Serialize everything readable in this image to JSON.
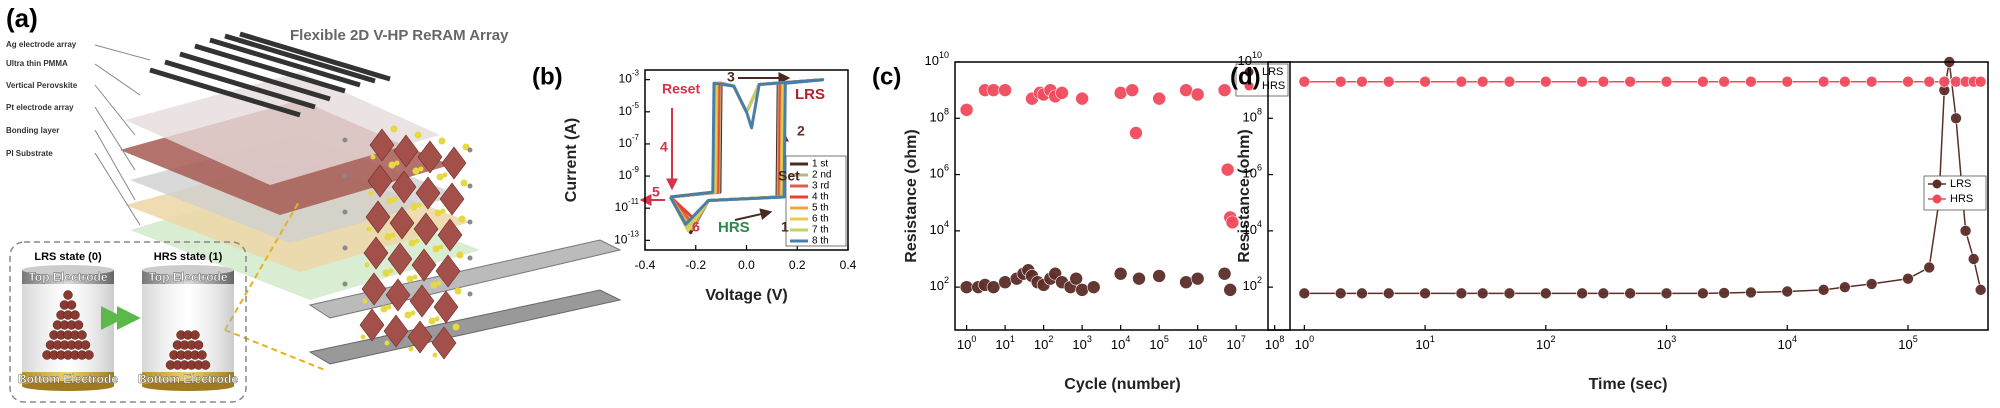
{
  "panel_a": {
    "label": "(a)",
    "title": "Flexible 2D V-HP ReRAM Array",
    "layers": [
      "Ag electrode array",
      "Ultra thin PMMA",
      "Vertical Perovskite",
      "Pt electrode array",
      "Bonding layer",
      "PI Substrate"
    ],
    "inset": [
      {
        "state": "LRS state (0)",
        "top": "Top Electrode",
        "bottom": "Bottom Electrode"
      },
      {
        "state": "HRS state (1)",
        "top": "Top Electrode",
        "bottom": "Bottom Electrode"
      }
    ]
  },
  "chart_data": [
    {
      "type": "line",
      "label": "(b)",
      "xlabel": "Voltage (V)",
      "ylabel": "Current (A)",
      "xlim": [
        -0.4,
        0.4
      ],
      "xticks": [
        -0.4,
        -0.2,
        {
          "value": 0,
          "label": "0.0"
        },
        0.2,
        0.4
      ],
      "ylog": true,
      "ylim": [
        2.5e-14,
        0.004
      ],
      "yticks": [
        {
          "value": 1e-13,
          "label": "10",
          "exponent": "-13"
        },
        {
          "value": 1e-11,
          "label": "10",
          "exponent": "-11"
        },
        {
          "value": 1e-09,
          "label": "10",
          "exponent": "-9"
        },
        {
          "value": 1e-07,
          "label": "10",
          "exponent": "-7"
        },
        {
          "value": 1e-05,
          "label": "10",
          "exponent": "-5"
        },
        {
          "value": 0.001,
          "label": "10",
          "exponent": "-3"
        }
      ],
      "legend": "lower right",
      "series": [
        {
          "name": "1 st",
          "color": "#4a2a22",
          "x": [
            -0.3,
            -0.22,
            -0.15,
            0.12,
            0.125,
            0.3,
            0.05,
            0.01,
            0,
            -0.01,
            -0.05,
            -0.1,
            -0.105,
            -0.3
          ],
          "values": [
            5e-11,
            3e-13,
            3e-11,
            5e-11,
            0.0006,
            0.001,
            0.0005,
            2e-05,
            1e-05,
            2e-05,
            0.0004,
            0.0006,
            1e-10,
            5e-11
          ]
        },
        {
          "name": "2 nd",
          "color": "#b8b48c",
          "x": [
            -0.3,
            -0.215,
            -0.15,
            0.124,
            0.129,
            0.3,
            0.05,
            0.01,
            0,
            -0.01,
            -0.05,
            -0.104,
            -0.109,
            -0.3
          ],
          "values": [
            5e-11,
            5e-13,
            3e-11,
            5e-11,
            0.0006,
            0.001,
            0.0005,
            2e-05,
            1e-05,
            2e-05,
            0.0004,
            0.0006,
            1e-10,
            5e-11
          ]
        },
        {
          "name": "3 rd",
          "color": "#d9604e",
          "x": [
            -0.3,
            -0.21,
            -0.15,
            0.128,
            0.133,
            0.3,
            0.05,
            0.01,
            0,
            -0.01,
            -0.05,
            -0.108,
            -0.113,
            -0.3
          ],
          "values": [
            5e-11,
            1e-12,
            3e-11,
            5e-11,
            0.0006,
            0.001,
            0.0005,
            2e-05,
            1e-05,
            2e-05,
            0.0004,
            0.0006,
            1e-10,
            5e-11
          ]
        },
        {
          "name": "4 th",
          "color": "#e8402c",
          "x": [
            -0.3,
            -0.205,
            -0.15,
            0.132,
            0.137,
            0.3,
            0.05,
            0.01,
            0,
            -0.01,
            -0.05,
            -0.112,
            -0.117,
            -0.3
          ],
          "values": [
            5e-11,
            2e-12,
            3e-11,
            5e-11,
            0.0006,
            0.001,
            0.0005,
            2e-05,
            1e-05,
            2e-05,
            0.0004,
            0.0006,
            1e-10,
            5e-11
          ]
        },
        {
          "name": "5 th",
          "color": "#f0a63c",
          "x": [
            -0.3,
            -0.225,
            -0.15,
            0.136,
            0.141,
            0.3,
            0.05,
            0.01,
            0,
            -0.01,
            -0.05,
            -0.116,
            -0.121,
            -0.3
          ],
          "values": [
            5e-11,
            8e-13,
            3e-11,
            5e-11,
            0.0006,
            0.001,
            0.0005,
            2e-05,
            1e-05,
            2e-05,
            0.0004,
            0.0006,
            1e-10,
            5e-11
          ]
        },
        {
          "name": "6 th",
          "color": "#e8cf4e",
          "x": [
            -0.3,
            -0.23,
            -0.15,
            0.14,
            0.145,
            0.3,
            0.05,
            0.01,
            0,
            -0.01,
            -0.05,
            -0.12,
            -0.125,
            -0.3
          ],
          "values": [
            5e-11,
            4e-13,
            3e-11,
            5e-11,
            0.0006,
            0.001,
            0.0005,
            2e-05,
            1e-05,
            2e-05,
            0.0004,
            0.0006,
            1e-10,
            5e-11
          ]
        },
        {
          "name": "7 th",
          "color": "#c6d062",
          "x": [
            -0.3,
            -0.235,
            -0.15,
            0.144,
            0.149,
            0.3,
            0.05,
            0.01,
            0,
            -0.01,
            -0.05,
            -0.124,
            -0.129,
            -0.3
          ],
          "values": [
            5e-11,
            6e-13,
            3e-11,
            5e-11,
            0.0006,
            0.001,
            0.0005,
            2e-05,
            1e-05,
            2e-05,
            0.0004,
            0.0006,
            1e-10,
            5e-11
          ]
        },
        {
          "name": "8 th",
          "color": "#4a7ea8",
          "x": [
            -0.3,
            -0.24,
            -0.15,
            0.148,
            0.153,
            0.3,
            0.05,
            0.02,
            0,
            -0.01,
            -0.05,
            -0.128,
            -0.133,
            -0.3
          ],
          "values": [
            5e-11,
            1e-12,
            3e-11,
            5e-11,
            0.0006,
            0.001,
            0.0005,
            1e-06,
            1e-05,
            2e-05,
            0.0004,
            0.0006,
            1e-10,
            5e-11
          ]
        }
      ],
      "annotations": [
        {
          "text": "Reset",
          "color": "#d6334a"
        },
        {
          "text": "LRS",
          "color": "#b0202e"
        },
        {
          "text": "3",
          "color": "#4a2a22"
        },
        {
          "text": "2",
          "color": "#6a3028"
        },
        {
          "text": "4",
          "color": "#d6334a"
        },
        {
          "text": "5",
          "color": "#d6334a"
        },
        {
          "text": "6",
          "color": "#d6334a"
        },
        {
          "text": "HRS",
          "color": "#2a8a4a"
        },
        {
          "text": "1",
          "color": "#4a2a22"
        },
        {
          "text": "Set",
          "color": "#4a2a22"
        }
      ]
    },
    {
      "type": "scatter",
      "label": "(c)",
      "xlabel": "Cycle (number)",
      "ylabel": "Resistance (ohm)",
      "xlog": true,
      "xlim": [
        0.5,
        250000000
      ],
      "xticks": [
        {
          "value": 1,
          "label": "10",
          "exponent": "0"
        },
        {
          "value": 10,
          "label": "10",
          "exponent": "1"
        },
        {
          "value": 100,
          "label": "10",
          "exponent": "2"
        },
        {
          "value": 1000,
          "label": "10",
          "exponent": "3"
        },
        {
          "value": 10000,
          "label": "10",
          "exponent": "4"
        },
        {
          "value": 100000,
          "label": "10",
          "exponent": "5"
        },
        {
          "value": 1000000,
          "label": "10",
          "exponent": "6"
        },
        {
          "value": 10000000,
          "label": "10",
          "exponent": "7"
        },
        {
          "value": 100000000,
          "label": "10",
          "exponent": "8"
        }
      ],
      "ylog": true,
      "ylim": [
        3,
        10000000000
      ],
      "yticks": [
        {
          "value": 100,
          "label": "10",
          "exponent": "2"
        },
        {
          "value": 10000,
          "label": "10",
          "exponent": "4"
        },
        {
          "value": 1000000,
          "label": "10",
          "exponent": "6"
        },
        {
          "value": 100000000,
          "label": "10",
          "exponent": "8"
        },
        {
          "value": 10000000000,
          "label": "10",
          "exponent": "10"
        }
      ],
      "legend": "upper right",
      "series": [
        {
          "name": "LRS",
          "color": "#5c2e28",
          "x": [
            1,
            2,
            3,
            5,
            10,
            20,
            30,
            40,
            50,
            70,
            100,
            150,
            200,
            300,
            500,
            700,
            1000,
            2000,
            10000,
            30000,
            100000,
            500000,
            1000000,
            5000000,
            7000000
          ],
          "values": [
            100,
            100,
            120,
            100,
            150,
            200,
            300,
            400,
            250,
            150,
            120,
            200,
            300,
            150,
            100,
            200,
            80,
            100,
            300,
            200,
            250,
            150,
            200,
            300,
            80
          ]
        },
        {
          "name": "HRS",
          "color": "#f04a5c",
          "x": [
            1,
            3,
            5,
            10,
            50,
            80,
            100,
            150,
            200,
            300,
            1000,
            10000,
            20000,
            25000,
            100000,
            500000,
            1000000,
            5000000,
            6000000,
            7000000,
            8000000
          ],
          "values": [
            200000000,
            1000000000,
            1000000000,
            1000000000,
            500000000,
            800000000,
            700000000,
            1000000000,
            600000000,
            800000000,
            500000000,
            800000000,
            1000000000,
            30000000,
            500000000,
            1000000000,
            700000000,
            1000000000,
            1500000,
            30000,
            20000
          ]
        }
      ]
    },
    {
      "type": "line",
      "markers": true,
      "label": "(d)",
      "xlabel": "Time (sec)",
      "ylabel": "Resistance (ohm)",
      "xlog": true,
      "xlim": [
        0.5,
        460000
      ],
      "xticks": [
        {
          "value": 1,
          "label": "10",
          "exponent": "0"
        },
        {
          "value": 10,
          "label": "10",
          "exponent": "1"
        },
        {
          "value": 100,
          "label": "10",
          "exponent": "2"
        },
        {
          "value": 1000,
          "label": "10",
          "exponent": "3"
        },
        {
          "value": 10000,
          "label": "10",
          "exponent": "4"
        },
        {
          "value": 100000,
          "label": "10",
          "exponent": "5"
        }
      ],
      "ylog": true,
      "ylim": [
        3,
        10000000000
      ],
      "yticks": [
        {
          "value": 100,
          "label": "10",
          "exponent": "2"
        },
        {
          "value": 10000,
          "label": "10",
          "exponent": "4"
        },
        {
          "value": 1000000,
          "label": "10",
          "exponent": "6"
        },
        {
          "value": 100000000,
          "label": "10",
          "exponent": "8"
        },
        {
          "value": 10000000000,
          "label": "10",
          "exponent": "10"
        }
      ],
      "legend": "center right",
      "series": [
        {
          "name": "LRS",
          "color": "#5c2e28",
          "x": [
            1,
            2,
            3,
            5,
            10,
            20,
            30,
            50,
            100,
            200,
            300,
            500,
            1000,
            2000,
            3000,
            5000,
            10000,
            20000,
            30000,
            50000,
            100000,
            150000,
            180000,
            200000,
            220000,
            250000,
            300000,
            350000,
            400000
          ],
          "values": [
            60,
            60,
            60,
            60,
            60,
            60,
            60,
            60,
            60,
            60,
            60,
            60,
            60,
            60,
            62,
            65,
            70,
            80,
            100,
            130,
            200,
            500,
            100000,
            1000000000,
            10000000000,
            100000000,
            10000,
            1000,
            80
          ]
        },
        {
          "name": "HRS",
          "color": "#f04a5c",
          "x": [
            1,
            2,
            3,
            5,
            10,
            20,
            30,
            50,
            100,
            200,
            300,
            500,
            1000,
            2000,
            3000,
            5000,
            10000,
            20000,
            30000,
            50000,
            100000,
            150000,
            200000,
            250000,
            300000,
            350000,
            400000
          ],
          "values": [
            2000000000,
            2000000000,
            2000000000,
            2000000000,
            2000000000,
            2000000000,
            2000000000,
            2000000000,
            2000000000,
            2000000000,
            2000000000,
            2000000000,
            2000000000,
            2000000000,
            2000000000,
            2000000000,
            2000000000,
            2000000000,
            2000000000,
            2000000000,
            2000000000,
            2000000000,
            2000000000,
            2000000000,
            2000000000,
            2000000000,
            2000000000
          ]
        }
      ]
    }
  ]
}
